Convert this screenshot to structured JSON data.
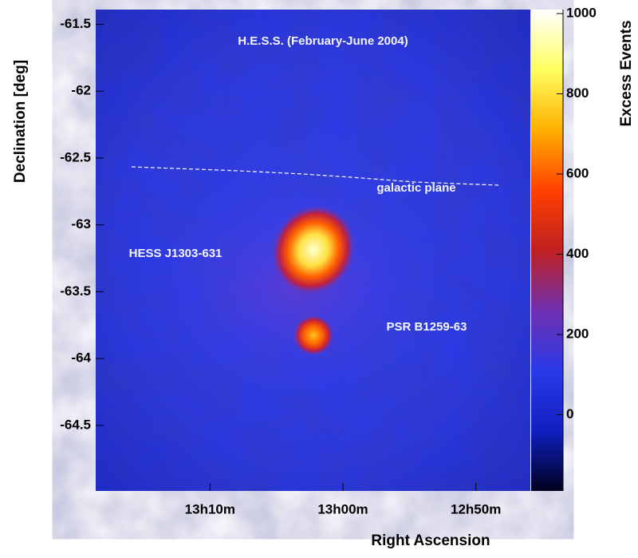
{
  "chart_data": {
    "type": "skymap",
    "title": "H.E.S.S. (February-June 2004)",
    "x_label": "Right Ascension",
    "y_label": "Declination [deg]",
    "xlim": [
      798.6,
      765.9
    ],
    "xticks": [
      {
        "value": 790,
        "label": "13h10m"
      },
      {
        "value": 780,
        "label": "13h00m"
      },
      {
        "value": 770,
        "label": "12h50m"
      }
    ],
    "ylim": [
      -64.99,
      -61.39
    ],
    "yticks": [
      -61.5,
      -62,
      -62.5,
      -63,
      -63.5,
      -64,
      -64.5
    ],
    "annotations": [
      "galactic plane",
      "HESS J1303-631",
      "PSR B1259-63"
    ],
    "colorbar": {
      "label": "Excess Events",
      "lim": [
        -190,
        1010
      ],
      "ticks": [
        0,
        200,
        400,
        600,
        800,
        1000
      ],
      "colors": [
        "#000020",
        "#1020c0",
        "#2a3ae8",
        "#7030b0",
        "#c02020",
        "#ff4000",
        "#ffb000",
        "#ffff60",
        "#ffffff"
      ]
    }
  }
}
